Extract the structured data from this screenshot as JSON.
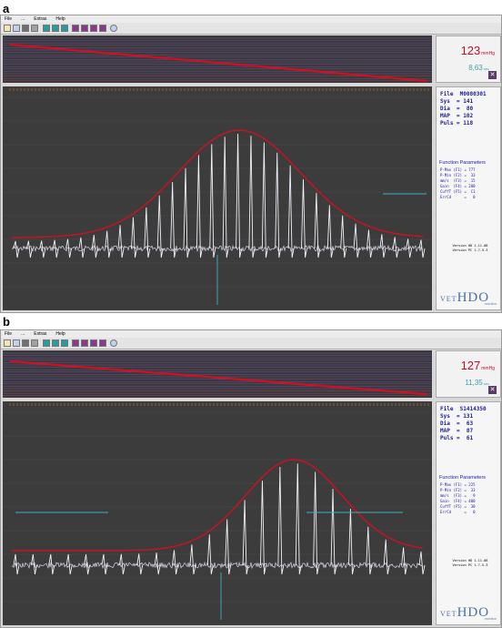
{
  "panels": [
    {
      "letter": "a",
      "menu": [
        "File",
        "...",
        "Extras",
        "Help"
      ],
      "bp_value": "123",
      "bp_unit": "mmHg",
      "duration": "8,63",
      "duration_unit": "sec",
      "readout": {
        "file": "File  M0080301",
        "sys": "Sys  = 141",
        "dia": "Dia  =  80",
        "map": "MAP  = 102",
        "puls": "Puls = 118"
      },
      "fp_title": "Function Parameters",
      "fp": [
        "P-Max (F1) = 777",
        "P-Min (F2) =  33",
        "mm/s  (F3) =  15",
        "Gain  (F4) = 200",
        "CuffT (F5) =  C1",
        "ErrCd      =   0"
      ],
      "versions": [
        "Version HD 1.11.08",
        "Version PC 1.7.5.3"
      ],
      "logo": "VET",
      "logo_main": "HDO",
      "logo_sub": "monitor"
    },
    {
      "letter": "b",
      "menu": [
        "File",
        "...",
        "Extras",
        "Help"
      ],
      "bp_value": "127",
      "bp_unit": "mmHg",
      "duration": "11,35",
      "duration_unit": "sec",
      "readout": {
        "file": "File  S1414350",
        "sys": "Sys  = 131",
        "dia": "Dia  =  63",
        "map": "MAP  =  87",
        "puls": "Puls =  61"
      },
      "fp_title": "Function Parameters",
      "fp": [
        "P-Max (F1) = 225",
        "P-Min (F2) =  33",
        "mm/s  (F3) =   9",
        "Gain  (F4) = 400",
        "CuffT (F5) =  30",
        "ErrCd      =   0"
      ],
      "versions": [
        "Version HD 1.11.08",
        "Version PC 1.7.5.3"
      ],
      "logo": "VET",
      "logo_main": "HDO",
      "logo_sub": "monitor"
    }
  ],
  "colors": {
    "envelope": "#d01020",
    "trace": "#e8e8f0",
    "marker": "#40b0c0",
    "grid_purple": "#6a4a9a",
    "grid_red": "#b04040",
    "readout_blue": "#1a1aa0"
  },
  "icons": [
    "open-icon",
    "save-icon",
    "print-icon",
    "settings-icon",
    "function-icon"
  ]
}
